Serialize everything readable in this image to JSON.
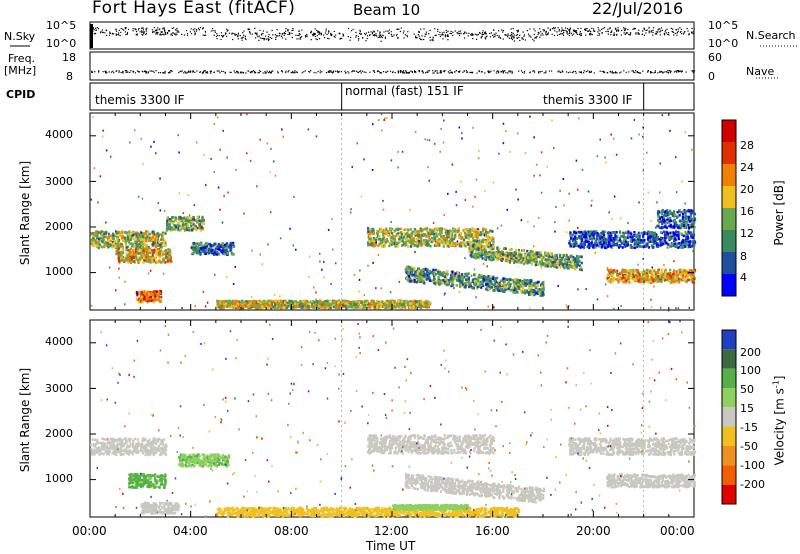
{
  "header": {
    "title": "Fort Hays East (fitACF)",
    "beam": "Beam 10",
    "date": "22/Jul/2016"
  },
  "top_panels": {
    "nsky_label": "N.Sky",
    "nsky_ticks": [
      "10^5",
      "10^0"
    ],
    "nsearch_label": "N.Search",
    "nsearch_ticks": [
      "10^5",
      "10^0"
    ],
    "freq_label_1": "Freq.",
    "freq_label_2": "[MHz]",
    "freq_ticks": [
      "18",
      "8"
    ],
    "nave_label": "Nave",
    "nave_ticks": [
      "60",
      "0"
    ],
    "cpid_label": "CPID",
    "cpid_segments": [
      {
        "label": "themis 3300 IF",
        "start_hour": 0
      },
      {
        "label": "normal (fast) 151 IF",
        "start_hour": 10
      },
      {
        "label": "themis 3300 IF",
        "start_hour": 22
      }
    ]
  },
  "chart_data": [
    {
      "type": "heatmap",
      "parameter": "Power",
      "ylabel": "Slant Range [km]",
      "ylim": [
        180,
        4500
      ],
      "yticks": [
        "4000",
        "3000",
        "2000",
        "1000"
      ],
      "xlim_hours": [
        0,
        24
      ],
      "colorbar_label": "Power [dB]",
      "colorbar_ticks": [
        "28",
        "24",
        "20",
        "16",
        "12",
        "8",
        "4"
      ],
      "colorbar_range": [
        0,
        30
      ],
      "colors": [
        "#0000ff",
        "#1f4fa0",
        "#3a8a60",
        "#6aa84f",
        "#f0c020",
        "#f08000",
        "#e03000",
        "#d00000"
      ],
      "echo_regions": [
        {
          "t0": 0.0,
          "t1": 3.0,
          "r_center": 1750,
          "r_width": 180,
          "db": 14
        },
        {
          "t0": 1.0,
          "t1": 3.2,
          "r_center": 1400,
          "r_width": 150,
          "db": 18
        },
        {
          "t0": 1.8,
          "t1": 2.8,
          "r_center": 500,
          "r_width": 120,
          "db": 22
        },
        {
          "t0": 3.0,
          "t1": 4.5,
          "r_center": 2100,
          "r_width": 150,
          "db": 12
        },
        {
          "t0": 4.0,
          "t1": 5.7,
          "r_center": 1550,
          "r_width": 130,
          "db": 8
        },
        {
          "t0": 5.0,
          "t1": 13.5,
          "r_center": 330,
          "r_width": 80,
          "db": 16
        },
        {
          "t0": 11.0,
          "t1": 16.0,
          "r_center": 1800,
          "r_width": 200,
          "db": 14
        },
        {
          "t0": 12.5,
          "t1": 18.0,
          "r_center": 1000,
          "r_width": 160,
          "db": 10
        },
        {
          "t0": 15.0,
          "t1": 19.5,
          "r_center": 1500,
          "r_width": 150,
          "db": 12
        },
        {
          "t0": 19.0,
          "t1": 24.0,
          "r_center": 1750,
          "r_width": 180,
          "db": 6
        },
        {
          "t0": 20.5,
          "t1": 24.0,
          "r_center": 950,
          "r_width": 140,
          "db": 18
        },
        {
          "t0": 22.5,
          "t1": 24.0,
          "r_center": 2200,
          "r_width": 200,
          "db": 6
        }
      ]
    },
    {
      "type": "heatmap",
      "parameter": "Velocity",
      "ylabel": "Slant Range [km]",
      "ylim": [
        180,
        4500
      ],
      "yticks": [
        "4000",
        "3000",
        "2000",
        "1000"
      ],
      "xlim_hours": [
        0,
        24
      ],
      "xlabel": "Time UT",
      "xticks": [
        "00:00",
        "04:00",
        "08:00",
        "12:00",
        "16:00",
        "20:00",
        "00:00"
      ],
      "colorbar_label": "Velocity [m s",
      "colorbar_label_exp": "-1",
      "colorbar_label_end": "]",
      "colorbar_ticks": [
        "200",
        "100",
        "50",
        "15",
        "-15",
        "-50",
        "-100",
        "-200"
      ],
      "colors": [
        "#2040c0",
        "#3a6a40",
        "#55b045",
        "#8fd060",
        "#c8c8c0",
        "#f0c020",
        "#f09020",
        "#f06000",
        "#e00000"
      ],
      "echo_regions": [
        {
          "t0": 0.0,
          "t1": 3.0,
          "r_center": 1750,
          "r_width": 180,
          "vel": 0
        },
        {
          "t0": 1.5,
          "t1": 3.0,
          "r_center": 1000,
          "r_width": 150,
          "vel": 60
        },
        {
          "t0": 2.0,
          "t1": 3.5,
          "r_center": 400,
          "r_width": 120,
          "vel": 0
        },
        {
          "t0": 3.5,
          "t1": 5.5,
          "r_center": 1450,
          "r_width": 130,
          "vel": 40
        },
        {
          "t0": 5.0,
          "t1": 17.0,
          "r_center": 280,
          "r_width": 130,
          "vel": -30
        },
        {
          "t0": 12.0,
          "t1": 15.0,
          "r_center": 420,
          "r_width": 50,
          "vel": 30
        },
        {
          "t0": 11.0,
          "t1": 16.0,
          "r_center": 1800,
          "r_width": 200,
          "vel": 0
        },
        {
          "t0": 12.5,
          "t1": 18.0,
          "r_center": 1000,
          "r_width": 160,
          "vel": 0
        },
        {
          "t0": 19.0,
          "t1": 24.0,
          "r_center": 1750,
          "r_width": 180,
          "vel": 0
        },
        {
          "t0": 20.5,
          "t1": 24.0,
          "r_center": 1000,
          "r_width": 140,
          "vel": 0
        }
      ]
    }
  ]
}
